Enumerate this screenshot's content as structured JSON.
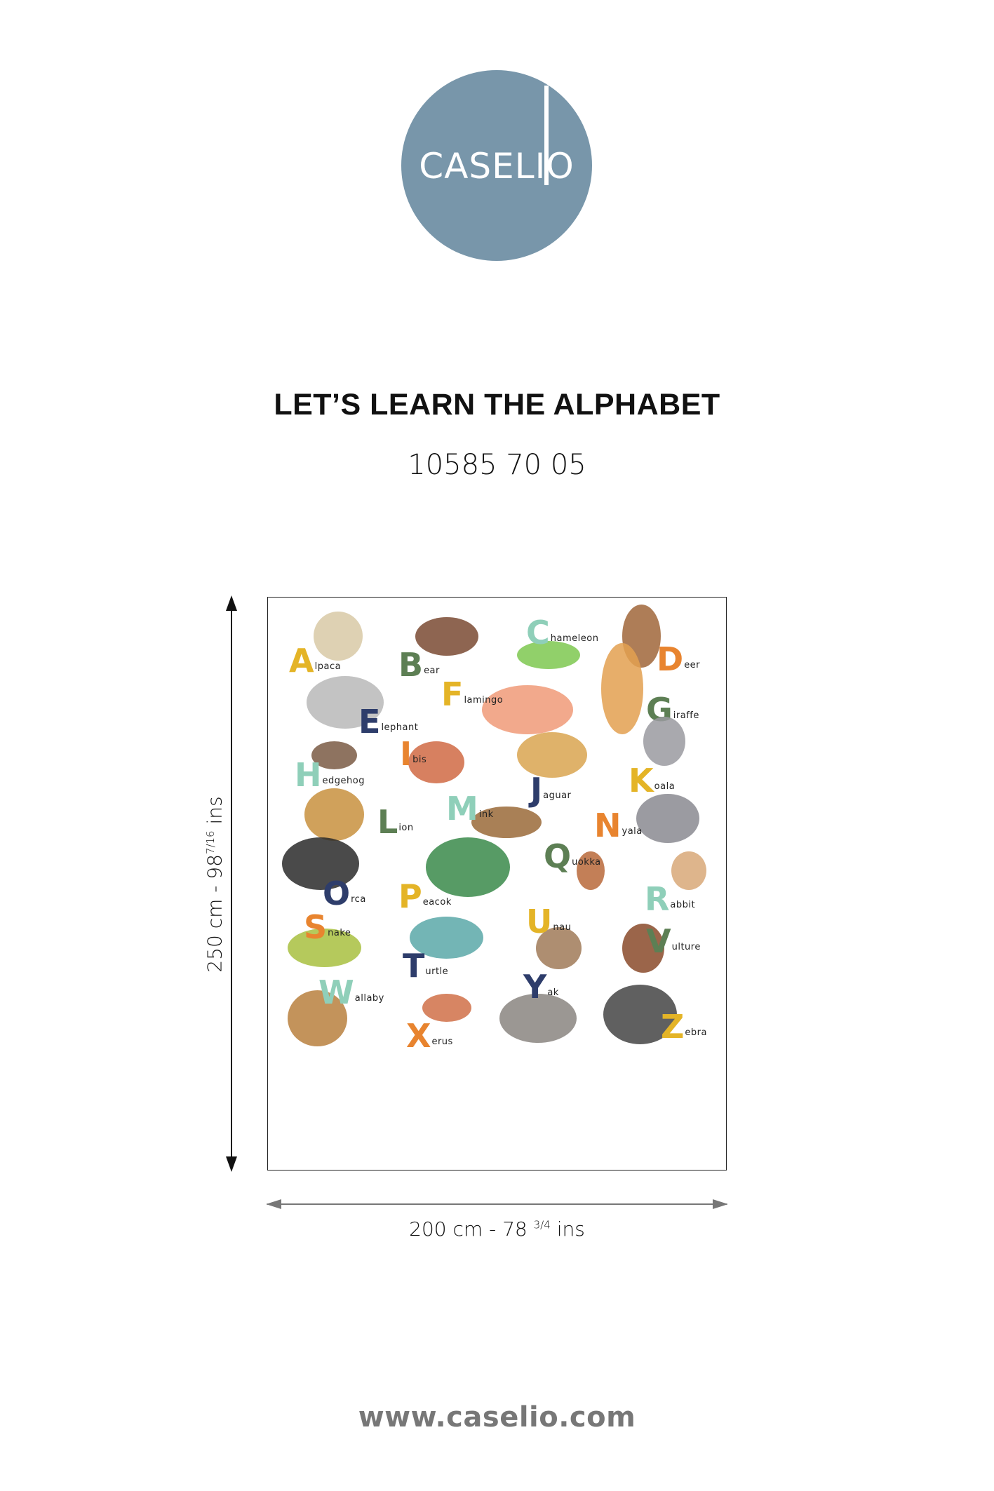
{
  "logo": {
    "text": "CASELIO",
    "color": "#7896aa"
  },
  "title": "LET’S LEARN THE ALPHABET",
  "product_code": "10585 70 05",
  "poster": {
    "entries": [
      {
        "letter": "A",
        "rest": "lpaca",
        "color": "#e4b427",
        "animal_color": "#d8c9a6"
      },
      {
        "letter": "B",
        "rest": "ear",
        "color": "#5d7f54",
        "animal_color": "#7a4a32"
      },
      {
        "letter": "C",
        "rest": "hameleon",
        "color": "#8fcfb9",
        "animal_color": "#7ec850"
      },
      {
        "letter": "D",
        "rest": "eer",
        "color": "#e8842f",
        "animal_color": "#a0663a"
      },
      {
        "letter": "E",
        "rest": "lephant",
        "color": "#2e3d6b",
        "animal_color": "#b8b8b8"
      },
      {
        "letter": "F",
        "rest": "lamingo",
        "color": "#e4b427",
        "animal_color": "#f09a78"
      },
      {
        "letter": "G",
        "rest": "iraffe",
        "color": "#5d7f54",
        "animal_color": "#e3a050"
      },
      {
        "letter": "H",
        "rest": "edgehog",
        "color": "#8fcfb9",
        "animal_color": "#7a5a44"
      },
      {
        "letter": "I",
        "rest": "bis",
        "color": "#e8842f",
        "animal_color": "#d06a44"
      },
      {
        "letter": "J",
        "rest": "aguar",
        "color": "#2e3d6b",
        "animal_color": "#d9a450"
      },
      {
        "letter": "K",
        "rest": "oala",
        "color": "#e4b427",
        "animal_color": "#9a9aa0"
      },
      {
        "letter": "L",
        "rest": "ion",
        "color": "#5d7f54",
        "animal_color": "#c8903e"
      },
      {
        "letter": "M",
        "rest": "ink",
        "color": "#8fcfb9",
        "animal_color": "#9a6a38"
      },
      {
        "letter": "N",
        "rest": "yala",
        "color": "#e8842f",
        "animal_color": "#8a8a90"
      },
      {
        "letter": "O",
        "rest": "rca",
        "color": "#2e3d6b",
        "animal_color": "#2a2a2a"
      },
      {
        "letter": "P",
        "rest": "eacok",
        "color": "#e4b427",
        "animal_color": "#3a8a4a"
      },
      {
        "letter": "Q",
        "rest": "uokka",
        "color": "#5d7f54",
        "animal_color": "#b8683a"
      },
      {
        "letter": "R",
        "rest": "abbit",
        "color": "#8fcfb9",
        "animal_color": "#d8a878"
      },
      {
        "letter": "S",
        "rest": "nake",
        "color": "#e8842f",
        "animal_color": "#a8c040"
      },
      {
        "letter": "T",
        "rest": "urtle",
        "color": "#2e3d6b",
        "animal_color": "#5aa8a8"
      },
      {
        "letter": "U",
        "rest": "nau",
        "color": "#e4b427",
        "animal_color": "#a07a58"
      },
      {
        "letter": "V",
        "rest": "ulture",
        "color": "#5d7f54",
        "animal_color": "#8a4a2a"
      },
      {
        "letter": "W",
        "rest": "allaby",
        "color": "#8fcfb9",
        "animal_color": "#b8803e"
      },
      {
        "letter": "X",
        "rest": "erus",
        "color": "#e8842f",
        "animal_color": "#d07048"
      },
      {
        "letter": "Y",
        "rest": "ak",
        "color": "#2e3d6b",
        "animal_color": "#8a8580"
      },
      {
        "letter": "Z",
        "rest": "ebra",
        "color": "#e4b427",
        "animal_color": "#444444"
      }
    ]
  },
  "height_dimension": {
    "value": "250 cm - 98",
    "fraction_num": "7",
    "fraction_den": "16",
    "unit": "ins"
  },
  "width_dimension": {
    "value": "200 cm - 78",
    "fraction_num": "3",
    "fraction_den": "4",
    "unit": "ins"
  },
  "website": "www.caselio.com"
}
